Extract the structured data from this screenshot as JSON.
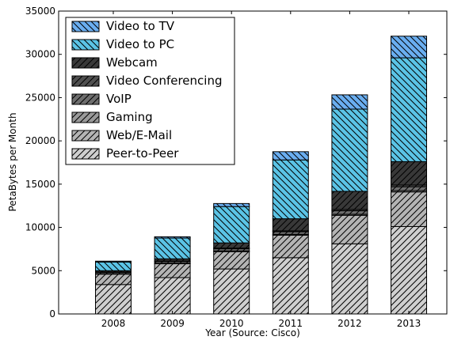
{
  "chart_data": {
    "type": "bar",
    "stacked": true,
    "xlabel": "Year (Source: Cisco)",
    "ylabel": "PetaBytes per Month",
    "ylim": [
      0,
      35000
    ],
    "yticks": [
      0,
      5000,
      10000,
      15000,
      20000,
      25000,
      30000,
      35000
    ],
    "categories": [
      "2008",
      "2009",
      "2010",
      "2011",
      "2012",
      "2013"
    ],
    "grid": false,
    "legend_position": "top-left",
    "series": [
      {
        "name": "Peer-to-Peer",
        "color": "#cfcfcf",
        "hatch": "fwd",
        "values": [
          3400,
          4200,
          5200,
          6500,
          8100,
          10100
        ]
      },
      {
        "name": "Web/E-Mail",
        "color": "#b4b4b4",
        "hatch": "fwd",
        "values": [
          1200,
          1600,
          2000,
          2600,
          3300,
          4000
        ]
      },
      {
        "name": "Gaming",
        "color": "#9a9a9a",
        "hatch": "fwd",
        "values": [
          50,
          60,
          80,
          100,
          120,
          150
        ]
      },
      {
        "name": "VoIP",
        "color": "#6e6e6e",
        "hatch": "fwd",
        "values": [
          150,
          200,
          250,
          300,
          400,
          450
        ]
      },
      {
        "name": "Video Conferencing",
        "color": "#505050",
        "hatch": "fwd",
        "values": [
          50,
          60,
          80,
          100,
          150,
          200
        ]
      },
      {
        "name": "Webcam",
        "color": "#383838",
        "hatch": "fwd",
        "values": [
          150,
          250,
          600,
          1400,
          2100,
          2700
        ]
      },
      {
        "name": "Video to PC",
        "color": "#5bc4e6",
        "hatch": "back",
        "values": [
          1000,
          2400,
          4200,
          6800,
          9500,
          12000
        ]
      },
      {
        "name": "Video to TV",
        "color": "#6aaef0",
        "hatch": "back",
        "values": [
          100,
          150,
          350,
          950,
          1650,
          2500
        ]
      }
    ]
  }
}
